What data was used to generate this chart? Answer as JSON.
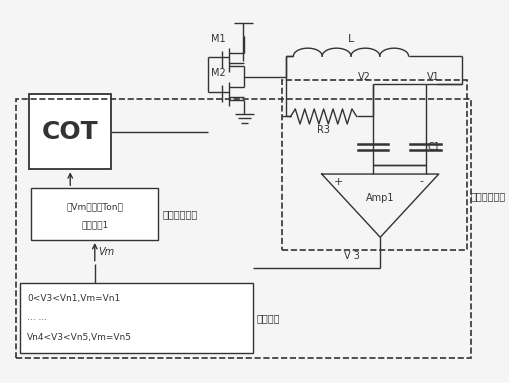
{
  "bg_color": "#f5f5f5",
  "line_color": "#333333",
  "cot_text": "COT",
  "freq_text_line1": "将Vm转化为Ton的",
  "freq_text_line2": "充电电流1",
  "freq_module_label": "频率选择模块",
  "judge_text_line1": "0<V3<Vn1,Vm=Vn1",
  "judge_text_line2": "... ...",
  "judge_text_line3": "Vn4<V3<Vn5,Vm=Vn5",
  "judge_module_label": "判定模块",
  "load_detect_label": "负载检测模块",
  "Vm_label": "Vm",
  "V3_label": "V 3",
  "M1_label": "M1",
  "M2_label": "M2",
  "L_label": "L",
  "R3_label": "R3",
  "V2_label": "V2",
  "V1_label": "V1",
  "C1_label": "C1",
  "Amp1_label": "Amp1"
}
